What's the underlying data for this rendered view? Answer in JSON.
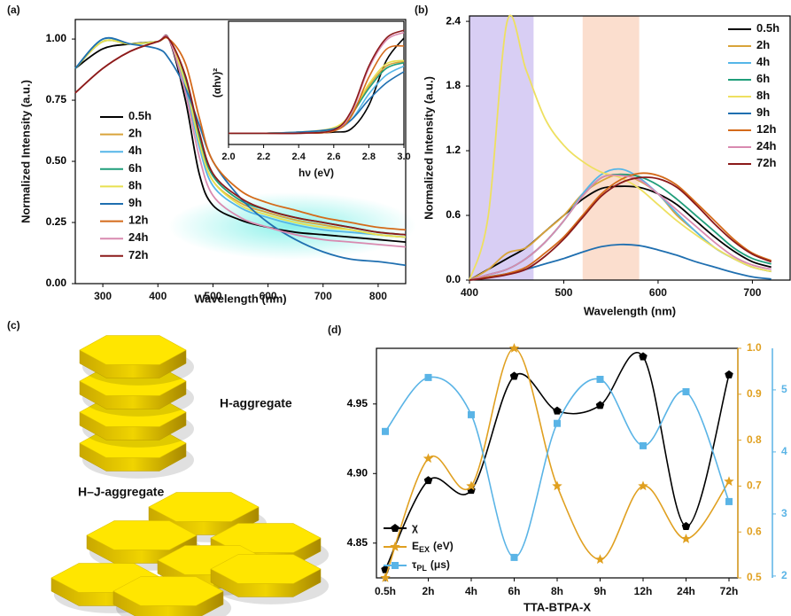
{
  "chart_data": [
    {
      "type": "line",
      "panel_label": "(a)",
      "x_label": "Wavelength (nm)",
      "y_label": "Normalized Intensity (a.u.)",
      "legend": "center left",
      "x": [
        250,
        300,
        350,
        400,
        420,
        450,
        475,
        500,
        550,
        600,
        650,
        700,
        750,
        800,
        850
      ],
      "xlim": [
        250,
        850
      ],
      "xticks": [
        300,
        400,
        500,
        600,
        700,
        800
      ],
      "ylim": [
        0,
        1.08
      ],
      "yticks": [
        {
          "value": 0,
          "label": "0.00"
        },
        {
          "value": 0.25,
          "label": "0.25"
        },
        {
          "value": 0.5,
          "label": "0.50"
        },
        {
          "value": 0.75,
          "label": "0.75"
        },
        {
          "value": 1,
          "label": "1.00"
        }
      ],
      "series": [
        {
          "name": "0.5h",
          "color": "#000000",
          "values": [
            0.88,
            0.96,
            0.98,
            0.99,
            1.0,
            0.75,
            0.45,
            0.32,
            0.26,
            0.23,
            0.21,
            0.2,
            0.19,
            0.18,
            0.17
          ]
        },
        {
          "name": "2h",
          "color": "#d9a43a",
          "values": [
            0.88,
            0.99,
            0.98,
            0.99,
            1.0,
            0.82,
            0.58,
            0.42,
            0.33,
            0.29,
            0.26,
            0.24,
            0.22,
            0.2,
            0.19
          ]
        },
        {
          "name": "4h",
          "color": "#55b6e8",
          "values": [
            0.88,
            1.0,
            0.98,
            0.99,
            1.0,
            0.8,
            0.56,
            0.4,
            0.31,
            0.27,
            0.24,
            0.22,
            0.21,
            0.2,
            0.19
          ]
        },
        {
          "name": "6h",
          "color": "#1f9e7a",
          "values": [
            0.88,
            0.99,
            0.98,
            0.99,
            1.0,
            0.84,
            0.6,
            0.44,
            0.34,
            0.3,
            0.27,
            0.25,
            0.23,
            0.21,
            0.2
          ]
        },
        {
          "name": "8h",
          "color": "#e8e050",
          "values": [
            0.88,
            0.99,
            0.98,
            0.99,
            1.0,
            0.82,
            0.58,
            0.42,
            0.32,
            0.28,
            0.25,
            0.23,
            0.22,
            0.2,
            0.19
          ]
        },
        {
          "name": "9h",
          "color": "#1f6fb0",
          "values": [
            0.88,
            1.0,
            0.98,
            0.96,
            0.92,
            0.8,
            0.65,
            0.5,
            0.35,
            0.25,
            0.18,
            0.13,
            0.1,
            0.09,
            0.075
          ]
        },
        {
          "name": "12h",
          "color": "#d46a1a",
          "values": [
            0.78,
            0.88,
            0.95,
            0.99,
            1.0,
            0.9,
            0.68,
            0.5,
            0.38,
            0.33,
            0.3,
            0.27,
            0.25,
            0.23,
            0.22
          ]
        },
        {
          "name": "24h",
          "color": "#d98ab0",
          "values": [
            0.78,
            0.88,
            0.95,
            0.99,
            1.0,
            0.78,
            0.52,
            0.36,
            0.27,
            0.23,
            0.2,
            0.18,
            0.17,
            0.16,
            0.15
          ]
        },
        {
          "name": "72h",
          "color": "#8b1a1a",
          "values": [
            0.78,
            0.88,
            0.95,
            0.99,
            1.0,
            0.85,
            0.62,
            0.45,
            0.35,
            0.3,
            0.27,
            0.25,
            0.23,
            0.21,
            0.2
          ]
        }
      ]
    },
    {
      "type": "line",
      "x_label": "hν (eV)",
      "y_label": "(αhν)²",
      "x": [
        2.0,
        2.2,
        2.4,
        2.6,
        2.7,
        2.8,
        2.9,
        3.0
      ],
      "xlim": [
        2,
        3
      ],
      "xticks": [
        {
          "value": 2,
          "label": "2.0"
        },
        2.2,
        2.4,
        2.6,
        2.8,
        {
          "value": 3,
          "label": "3.0"
        }
      ],
      "ylim": [
        0,
        1.1
      ],
      "series": [
        {
          "color": "#000000",
          "values": [
            0.1,
            0.1,
            0.1,
            0.11,
            0.14,
            0.35,
            0.75,
            0.95
          ]
        },
        {
          "color": "#d9a43a",
          "values": [
            0.1,
            0.1,
            0.11,
            0.14,
            0.26,
            0.52,
            0.7,
            0.74
          ]
        },
        {
          "color": "#55b6e8",
          "values": [
            0.1,
            0.1,
            0.11,
            0.13,
            0.22,
            0.45,
            0.62,
            0.7
          ]
        },
        {
          "color": "#1f9e7a",
          "values": [
            0.1,
            0.1,
            0.11,
            0.14,
            0.27,
            0.5,
            0.68,
            0.73
          ]
        },
        {
          "color": "#e8e050",
          "values": [
            0.1,
            0.1,
            0.11,
            0.15,
            0.28,
            0.54,
            0.72,
            0.75
          ]
        },
        {
          "color": "#1f6fb0",
          "values": [
            0.1,
            0.1,
            0.11,
            0.14,
            0.22,
            0.4,
            0.55,
            0.65
          ]
        },
        {
          "color": "#d46a1a",
          "values": [
            0.1,
            0.1,
            0.1,
            0.12,
            0.25,
            0.6,
            0.85,
            0.88
          ]
        },
        {
          "color": "#d98ab0",
          "values": [
            0.1,
            0.1,
            0.1,
            0.13,
            0.28,
            0.68,
            0.93,
            1.0
          ]
        },
        {
          "color": "#8b1a1a",
          "values": [
            0.1,
            0.1,
            0.1,
            0.13,
            0.3,
            0.7,
            0.95,
            1.02
          ]
        }
      ]
    },
    {
      "type": "line",
      "panel_label": "(b)",
      "x_label": "Wavelength (nm)",
      "y_label": "Normalized Intensity (a.u.)",
      "legend": "upper right",
      "x": [
        400,
        420,
        440,
        460,
        480,
        500,
        520,
        540,
        560,
        580,
        600,
        620,
        640,
        660,
        680,
        700,
        720
      ],
      "xlim": [
        400,
        740
      ],
      "xticks": [
        400,
        500,
        600,
        700
      ],
      "ylim": [
        0,
        2.45
      ],
      "yticks": [
        {
          "value": 0,
          "label": "0.0"
        },
        0.6,
        1.2,
        1.8,
        2.4
      ],
      "bands": [
        {
          "xlim": [
            400,
            468
          ],
          "color": "#cbbdf0"
        },
        {
          "xlim": [
            520,
            580
          ],
          "color": "#f9d3bd"
        }
      ],
      "series": [
        {
          "name": "0.5h",
          "color": "#000000",
          "values": [
            0,
            0.1,
            0.2,
            0.3,
            0.45,
            0.6,
            0.75,
            0.85,
            0.87,
            0.86,
            0.8,
            0.7,
            0.55,
            0.4,
            0.27,
            0.17,
            0.12
          ]
        },
        {
          "name": "2h",
          "color": "#d9a43a",
          "values": [
            0,
            0.1,
            0.25,
            0.3,
            0.45,
            0.6,
            0.8,
            0.92,
            0.98,
            0.92,
            0.8,
            0.6,
            0.45,
            0.3,
            0.2,
            0.12,
            0.08
          ]
        },
        {
          "name": "4h",
          "color": "#55b6e8",
          "values": [
            0,
            0.05,
            0.1,
            0.2,
            0.35,
            0.55,
            0.8,
            0.98,
            1.03,
            0.95,
            0.8,
            0.62,
            0.45,
            0.3,
            0.2,
            0.12,
            0.08
          ]
        },
        {
          "name": "6h",
          "color": "#1f9e7a",
          "values": [
            0,
            0.05,
            0.1,
            0.2,
            0.35,
            0.55,
            0.78,
            0.95,
            0.98,
            0.96,
            0.88,
            0.75,
            0.6,
            0.45,
            0.3,
            0.2,
            0.15
          ]
        },
        {
          "name": "8h",
          "color": "#eee060",
          "values": [
            0,
            0.6,
            2.4,
            1.95,
            1.5,
            1.25,
            1.1,
            1.0,
            0.95,
            0.85,
            0.7,
            0.55,
            0.42,
            0.3,
            0.2,
            0.12,
            0.08
          ]
        },
        {
          "name": "9h",
          "color": "#1f6fb0",
          "values": [
            0,
            0.03,
            0.06,
            0.1,
            0.15,
            0.2,
            0.26,
            0.31,
            0.33,
            0.32,
            0.28,
            0.23,
            0.17,
            0.12,
            0.07,
            0.03,
            0.01
          ]
        },
        {
          "name": "12h",
          "color": "#d46a1a",
          "values": [
            0,
            0.03,
            0.06,
            0.12,
            0.25,
            0.4,
            0.6,
            0.8,
            0.93,
            0.99,
            0.97,
            0.88,
            0.72,
            0.55,
            0.38,
            0.25,
            0.18
          ]
        },
        {
          "name": "24h",
          "color": "#d98ab0",
          "values": [
            0,
            0.05,
            0.1,
            0.2,
            0.35,
            0.55,
            0.78,
            0.95,
            0.97,
            0.93,
            0.8,
            0.65,
            0.5,
            0.35,
            0.22,
            0.14,
            0.1
          ]
        },
        {
          "name": "72h",
          "color": "#8b1a1a",
          "values": [
            0,
            0.02,
            0.05,
            0.1,
            0.22,
            0.38,
            0.58,
            0.78,
            0.9,
            0.95,
            0.94,
            0.86,
            0.7,
            0.52,
            0.36,
            0.24,
            0.17
          ]
        }
      ]
    },
    {
      "type": "line",
      "panel_label": "(d)",
      "x_label": "TTA-BTPA-X",
      "legend": "lower left",
      "categories": [
        "0.5h",
        "2h",
        "4h",
        "6h",
        "8h",
        "9h",
        "12h",
        "24h",
        "72h"
      ],
      "ylim": [
        4.825,
        4.99
      ],
      "yticks": [
        4.85,
        {
          "value": 4.9,
          "label": "4.90"
        },
        4.95
      ],
      "y2lim": [
        0.5,
        1.0
      ],
      "y2ticks": [
        0.5,
        0.6,
        0.7,
        0.8,
        0.9,
        {
          "value": 1,
          "label": "1.0"
        }
      ],
      "y3lim": [
        1.97,
        5.67
      ],
      "y3ticks": [
        2,
        3,
        4,
        5
      ],
      "series": [
        {
          "name": "χ",
          "color": "#000000",
          "marker": "pentagon",
          "axis": "y",
          "values": [
            4.831,
            4.895,
            4.888,
            4.97,
            4.945,
            4.949,
            4.984,
            4.862,
            4.971
          ]
        },
        {
          "name": "E",
          "name_sub": "EX",
          "name_unit": "(eV)",
          "color": "#e0a020",
          "marker": "star",
          "axis": "y2",
          "values": [
            0.5,
            0.76,
            0.7,
            1.0,
            0.7,
            0.54,
            0.7,
            0.585,
            0.71
          ]
        },
        {
          "name": "τ",
          "name_sub": "PL",
          "name_unit": "(μs)",
          "color": "#5ab4e6",
          "marker": "square",
          "axis": "y3",
          "values": [
            4.33,
            5.2,
            4.6,
            2.3,
            4.46,
            5.17,
            4.1,
            4.97,
            3.2
          ]
        }
      ]
    }
  ],
  "diagram": {
    "panel_label": "(c)",
    "labels": [
      "H-aggregate",
      "H–J-aggregate"
    ]
  }
}
